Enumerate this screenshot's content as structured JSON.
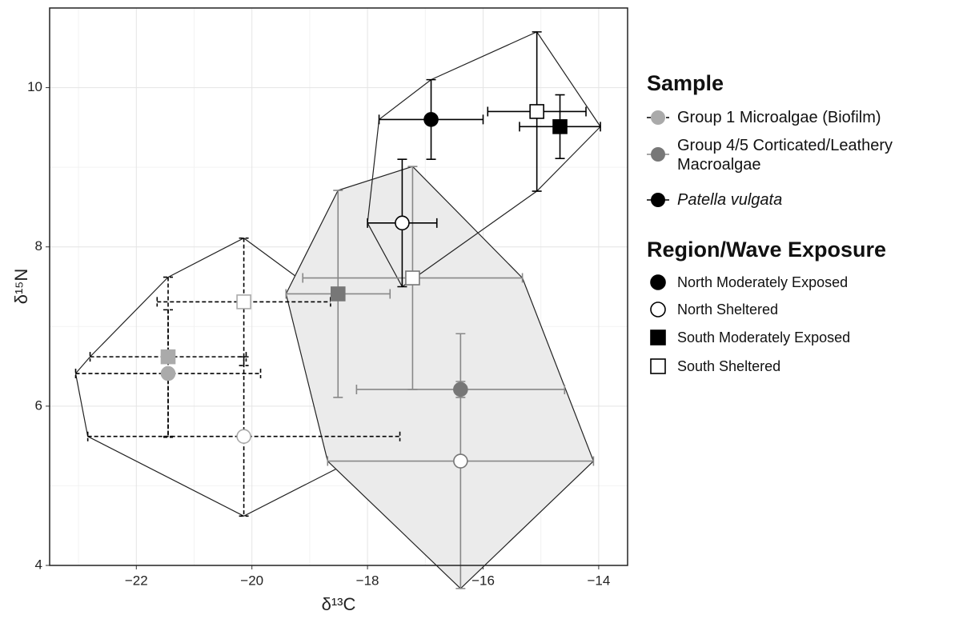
{
  "chart_data": {
    "type": "scatter",
    "x_label": "δ¹³C",
    "y_label": "δ¹⁵N",
    "xlim": [
      -23.5,
      -13.5
    ],
    "ylim": [
      4,
      11
    ],
    "xticks": [
      {
        "value": -22,
        "label": "−22"
      },
      {
        "value": -20,
        "label": "−20"
      },
      {
        "value": -18,
        "label": "−18"
      },
      {
        "value": -16,
        "label": "−16"
      },
      {
        "value": -14,
        "label": "−14"
      }
    ],
    "yticks": [
      4,
      6,
      8,
      10
    ],
    "xminor": [
      -23,
      -21,
      -19,
      -17,
      -15
    ],
    "yminor": [
      5,
      7,
      9
    ],
    "grid": true,
    "legend_title": "Sample",
    "groups_title": "Region/Wave Exposure",
    "groups": [
      "North Moderately Exposed",
      "North Sheltered",
      "South Moderately Exposed",
      "South Sheltered"
    ],
    "group_shapes": [
      {
        "shape": "circle",
        "filled": true
      },
      {
        "shape": "circle",
        "filled": false
      },
      {
        "shape": "square",
        "filled": true
      },
      {
        "shape": "square",
        "filled": false
      }
    ],
    "series": [
      {
        "name": "Group 1 Microalgae (Biofilm)",
        "color": "#aaaaaa",
        "bar_color": "#000000",
        "bar_dash": true,
        "hull_fill": "none",
        "italic": false,
        "x": [
          -21.45,
          -20.14,
          -21.45,
          -20.14
        ],
        "values": [
          6.41,
          5.62,
          6.62,
          7.31
        ],
        "xerr": [
          1.6,
          2.7,
          1.35,
          1.5
        ],
        "yerr": [
          0.8,
          1.0,
          1.0,
          0.8
        ]
      },
      {
        "name": "Group 4/5 Corticated/Leathery Macroalgae",
        "color": "#777777",
        "bar_color": "#888888",
        "bar_dash": false,
        "hull_fill": "#ebebeb",
        "italic": false,
        "x": [
          -16.39,
          -16.39,
          -18.51,
          -17.22
        ],
        "values": [
          6.21,
          5.31,
          7.41,
          7.61
        ],
        "xerr": [
          1.8,
          2.3,
          0.9,
          1.9
        ],
        "yerr": [
          0.1,
          1.6,
          1.3,
          1.4
        ]
      },
      {
        "name": "Patella vulgata",
        "color": "#000000",
        "bar_color": "#000000",
        "bar_dash": false,
        "hull_fill": "none",
        "italic": true,
        "x": [
          -16.9,
          -17.4,
          -14.67,
          -15.07
        ],
        "values": [
          9.6,
          8.3,
          9.51,
          9.7
        ],
        "xerr": [
          0.9,
          0.6,
          0.7,
          0.85
        ],
        "yerr": [
          0.5,
          0.8,
          0.4,
          1.0
        ]
      }
    ]
  }
}
